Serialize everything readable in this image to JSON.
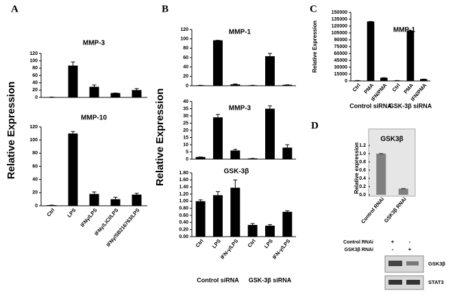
{
  "panel_labels": [
    "A",
    "B",
    "C",
    "D"
  ],
  "chart_data": [
    {
      "type": "bar",
      "title": "MMP-3",
      "categories": [
        null,
        null,
        null,
        null,
        null
      ],
      "values": [
        1,
        87,
        29,
        12,
        20
      ],
      "errors": [
        0,
        10,
        5,
        0,
        4
      ],
      "color": "#000000",
      "ylim": [
        0,
        120
      ],
      "yticks": [
        0,
        20,
        40,
        60,
        80,
        100,
        120
      ]
    },
    {
      "type": "bar",
      "title": "MMP-10",
      "ylabel": "Relative Expression",
      "categories": [
        "Ctrl",
        "LPS",
        "IFNγ/LPS",
        "IFNγ/LiCl/LPS",
        "IFNγ/SB216763/LPS"
      ],
      "values": [
        1,
        110,
        18,
        10,
        17
      ],
      "errors": [
        0,
        3,
        3,
        3,
        2
      ],
      "color": "#000000",
      "ylim": [
        0,
        120
      ],
      "yticks": [
        0,
        20,
        40,
        60,
        80,
        100,
        120
      ]
    },
    {
      "type": "bar",
      "title": "MMP-1",
      "categories": [
        null,
        null,
        null,
        null,
        null,
        null
      ],
      "values": [
        1,
        97,
        3,
        1,
        63,
        2
      ],
      "errors": [
        0,
        0,
        1,
        0,
        6,
        0
      ],
      "color": "#000000",
      "ylim": [
        0,
        120
      ],
      "yticks": [
        0,
        20,
        40,
        60,
        80,
        100,
        120
      ]
    },
    {
      "type": "bar",
      "title": "MMP-3",
      "ylabel": "Relative Expression",
      "categories": [
        null,
        null,
        null,
        null,
        null,
        null
      ],
      "values": [
        1.5,
        29,
        6,
        0.5,
        35,
        8
      ],
      "errors": [
        0,
        2,
        0.8,
        0,
        2,
        2
      ],
      "color": "#000000",
      "ylim": [
        0,
        40
      ],
      "yticks": [
        0,
        5,
        10,
        15,
        20,
        25,
        30,
        35,
        40
      ]
    },
    {
      "type": "bar",
      "title": "GSK-3β",
      "categories": [
        "Ctrl",
        "LPS",
        "IFN-γ/LPS",
        "Ctrl",
        "LPS",
        "IFN-γ/LPS"
      ],
      "groups": [
        "Control siRNA",
        "GSK-3β siRNA"
      ],
      "values": [
        1.0,
        1.17,
        1.38,
        0.33,
        0.31,
        0.7
      ],
      "errors": [
        0.04,
        0.1,
        0.22,
        0.04,
        0.03,
        0.03
      ],
      "color": "#000000",
      "ylim": [
        0,
        1.8
      ],
      "yticks": [
        {
          "value": 0,
          "label": "0.00"
        },
        {
          "value": 0.2,
          "label": "0.20"
        },
        {
          "value": 0.4,
          "label": "0.40"
        },
        {
          "value": 0.6,
          "label": "0.60"
        },
        {
          "value": 0.8,
          "label": "0.80"
        },
        {
          "value": 1.0,
          "label": "1.00"
        },
        {
          "value": 1.2,
          "label": "1.20"
        },
        {
          "value": 1.4,
          "label": "1.40"
        },
        {
          "value": 1.6,
          "label": "1.60"
        },
        {
          "value": 1.8,
          "label": "1.80"
        }
      ]
    },
    {
      "type": "bar",
      "title": "MMP-1",
      "ylabel": "Relative Expression",
      "categories": [
        "Ctrl",
        "PMA",
        "IFN/PMA",
        "Ctrl",
        "PMA",
        "IFN/PMA"
      ],
      "groups": [
        "Control siRNA",
        "GSK-3β siRNA"
      ],
      "values": [
        1000,
        130000,
        7000,
        1000,
        110000,
        4000
      ],
      "errors": [
        0,
        0,
        0,
        0,
        0,
        0
      ],
      "color": "#000000",
      "ylim": [
        0,
        150000
      ],
      "yticks": [
        0,
        15000,
        30000,
        45000,
        60000,
        75000,
        90000,
        105000,
        120000,
        135000,
        150000
      ]
    },
    {
      "type": "bar",
      "title": "GSK3β",
      "ylabel": "Relative expression",
      "categories": [
        "Control RNAi",
        "GSK3β RNAi"
      ],
      "values": [
        1.0,
        0.15
      ],
      "errors": [
        0,
        0
      ],
      "color": "#808080",
      "ylim": [
        0,
        1.2
      ],
      "yticks": [
        {
          "value": 0,
          "label": "0.0"
        },
        {
          "value": 0.2,
          "label": "0.2"
        },
        {
          "value": 0.4,
          "label": "0.4"
        },
        {
          "value": 0.6,
          "label": "0.6"
        },
        {
          "value": 0.8,
          "label": "0.8"
        },
        {
          "value": 1.0,
          "label": "1.0"
        },
        {
          "value": 1.2,
          "label": "1.2"
        }
      ]
    }
  ],
  "blot": {
    "rows": [
      {
        "label": "Control RNAi",
        "marks": [
          "+",
          "-"
        ]
      },
      {
        "label": "GSK3β RNAi",
        "marks": [
          "-",
          "+"
        ]
      }
    ],
    "bands": [
      "GSK3β",
      "STAT3"
    ]
  }
}
